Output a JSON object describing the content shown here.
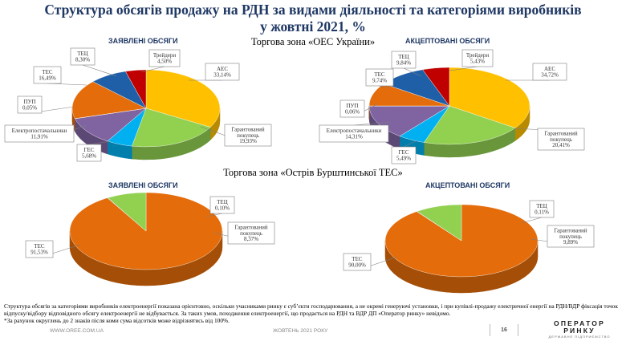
{
  "title_line1": "Структура обсягів продажу на РДН за видами діяльності та категоріями виробників",
  "title_line2": "у жовтні 2021, %",
  "zone_ua": "Торгова зона «ОЕС України»",
  "zone_bu": "Торгова зона «Острів Бурштинської ТЕС»",
  "colors": {
    "AES": "#FFC000",
    "Guaranteed": "#92D050",
    "GES": "#00B0F0",
    "Supply": "#8064A2",
    "PUP": "#4BACC6",
    "TES": "#E46C0A",
    "TEC": "#1F5FA8",
    "Traders": "#C00000"
  },
  "chart_data": [
    {
      "type": "pie",
      "title": "ЗАЯВЛЕНІ ОБСЯГИ",
      "zone": "Торгова зона «ОЕС України»",
      "slices": [
        {
          "label": "АЕС",
          "value": 33.14,
          "text": "33,14%",
          "key": "AES"
        },
        {
          "label": "Гарантований покупець",
          "value": 19.93,
          "text": "19,93%",
          "key": "Guaranteed"
        },
        {
          "label": "ГЕС",
          "value": 5.68,
          "text": "5,68%",
          "key": "GES"
        },
        {
          "label": "Електропостачальники",
          "value": 11.91,
          "text": "11,91%",
          "key": "Supply"
        },
        {
          "label": "ПУП",
          "value": 0.05,
          "text": "0,05%",
          "key": "PUP"
        },
        {
          "label": "ТЕС",
          "value": 16.49,
          "text": "16,49%",
          "key": "TES"
        },
        {
          "label": "ТЕЦ",
          "value": 8.3,
          "text": "8,30%",
          "key": "TEC"
        },
        {
          "label": "Трейдери",
          "value": 4.5,
          "text": "4,50%",
          "key": "Traders"
        }
      ]
    },
    {
      "type": "pie",
      "title": "АКЦЕПТОВАНІ ОБСЯГИ",
      "zone": "Торгова зона «ОЕС України»",
      "slices": [
        {
          "label": "АЕС",
          "value": 34.72,
          "text": "34,72%",
          "key": "AES"
        },
        {
          "label": "Гарантований покупець",
          "value": 20.41,
          "text": "20,41%",
          "key": "Guaranteed"
        },
        {
          "label": "ГЕС",
          "value": 5.49,
          "text": "5,49%",
          "key": "GES"
        },
        {
          "label": "Електропостачальники",
          "value": 14.31,
          "text": "14,31%",
          "key": "Supply"
        },
        {
          "label": "ПУП",
          "value": 0.06,
          "text": "0,06%",
          "key": "PUP"
        },
        {
          "label": "ТЕС",
          "value": 9.74,
          "text": "9,74%",
          "key": "TES"
        },
        {
          "label": "ТЕЦ",
          "value": 9.84,
          "text": "9,84%",
          "key": "TEC"
        },
        {
          "label": "Трейдери",
          "value": 5.43,
          "text": "5,43%",
          "key": "Traders"
        }
      ]
    },
    {
      "type": "pie",
      "title": "ЗАЯВЛЕНІ ОБСЯГИ",
      "zone": "Торгова зона «Острів Бурштинської ТЕС»",
      "slices": [
        {
          "label": "ТЕС",
          "value": 91.53,
          "text": "91,53%",
          "key": "TES"
        },
        {
          "label": "ТЕЦ",
          "value": 0.1,
          "text": "0,10%",
          "key": "TEC"
        },
        {
          "label": "Гарантований покупець",
          "value": 8.37,
          "text": "8,37%",
          "key": "Guaranteed"
        }
      ]
    },
    {
      "type": "pie",
      "title": "АКЦЕПТОВАНІ ОБСЯГИ",
      "zone": "Торгова зона «Острів Бурштинської ТЕС»",
      "slices": [
        {
          "label": "ТЕС",
          "value": 90.0,
          "text": "90,00%",
          "key": "TES"
        },
        {
          "label": "ТЕЦ",
          "value": 0.11,
          "text": "0,11%",
          "key": "TEC"
        },
        {
          "label": "Гарантований покупець",
          "value": 9.89,
          "text": "9,89%",
          "key": "Guaranteed"
        }
      ]
    }
  ],
  "note_line1": "Структура обсягів за категоріями виробників електроенергії показана орієнтовно, оскільки учасниками ринку є суб’єкти господарювання, а не окремі генеруючі установки, і при купівлі-продажу електричної енергії на РДН/ВДР фіксація точок відпуску/відбору відповідного обсягу електроенергії не відбувається. За таких умов, походження електроенергії, що продається на РДН та ВДР  ДП «Оператор ринку» невідомо.",
  "note_line2": "*За рахунок округлень до 2 знаків після коми сума відсотків може відрізнятись від 100%.",
  "footer_url": "WWW.OREE.COM.UA",
  "footer_month": "ЖОВТЕНЬ 2021 РОКУ",
  "page_number": "16",
  "logo_line1": "ОПЕРАТОР",
  "logo_line2": "РИНКУ",
  "logo_line3": "ДЕРЖАВНЕ ПІДПРИЄМСТВО"
}
